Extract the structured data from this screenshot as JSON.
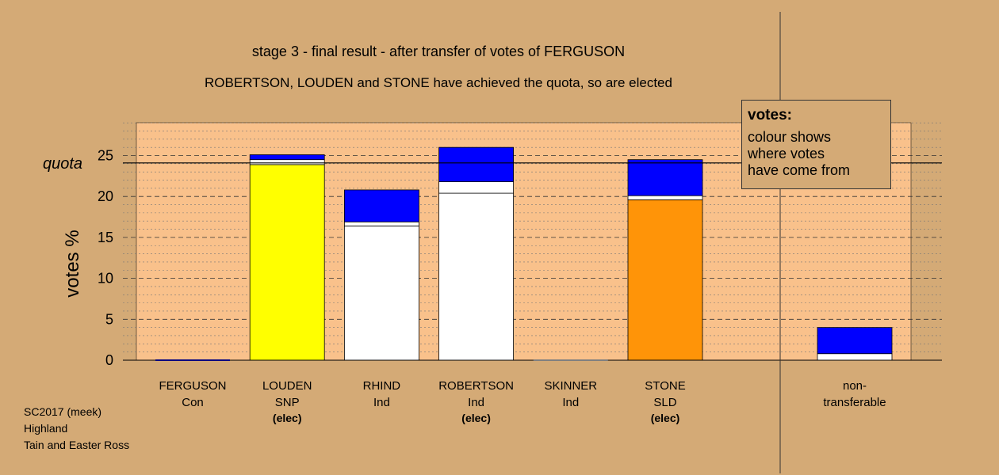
{
  "chart_data": {
    "type": "bar",
    "title": "stage 3 - final result - after transfer of votes of FERGUSON",
    "subtitle": "ROBERTSON, LOUDEN and STONE have achieved the quota, so are elected",
    "ylabel": "votes %",
    "quota_label": "quota",
    "quota": 24.1,
    "ylim": [
      0,
      29
    ],
    "yticks": [
      0,
      5,
      10,
      15,
      20,
      25
    ],
    "stack_order": [
      "base",
      "white",
      "blue"
    ],
    "colors": {
      "white": "#ffffff",
      "blue": "#0000ff"
    },
    "categories": [
      {
        "name": "FERGUSON",
        "party": "Con",
        "elec": "",
        "base": 0,
        "white": 0,
        "blue": 0,
        "color": "#0000ff"
      },
      {
        "name": "LOUDEN",
        "party": "SNP",
        "elec": "(elec)",
        "base": 23.9,
        "white": 0.6,
        "blue": 0.6,
        "color": "#ffff00"
      },
      {
        "name": "RHIND",
        "party": "Ind",
        "elec": "",
        "base": 16.4,
        "white": 0.5,
        "blue": 3.9,
        "color": "#ffffff"
      },
      {
        "name": "ROBERTSON",
        "party": "Ind",
        "elec": "(elec)",
        "base": 20.4,
        "white": 1.4,
        "blue": 4.2,
        "color": "#ffffff"
      },
      {
        "name": "SKINNER",
        "party": "Ind",
        "elec": "",
        "base": 0,
        "white": 0,
        "blue": 0,
        "color": "#ffffff"
      },
      {
        "name": "STONE",
        "party": "SLD",
        "elec": "(elec)",
        "base": 19.6,
        "white": 0.5,
        "blue": 4.4,
        "color": "#ff9408"
      }
    ],
    "nontransferable": {
      "label_line1": "non-",
      "label_line2": "transferable",
      "white": 0.8,
      "blue": 3.2
    }
  },
  "legend": {
    "title": "votes:",
    "line1": "colour shows",
    "line2": "where votes",
    "line3": "have come from"
  },
  "credits": {
    "line1": "SC2017 (meek)",
    "line2": "Highland",
    "line3": "Tain and Easter Ross"
  }
}
